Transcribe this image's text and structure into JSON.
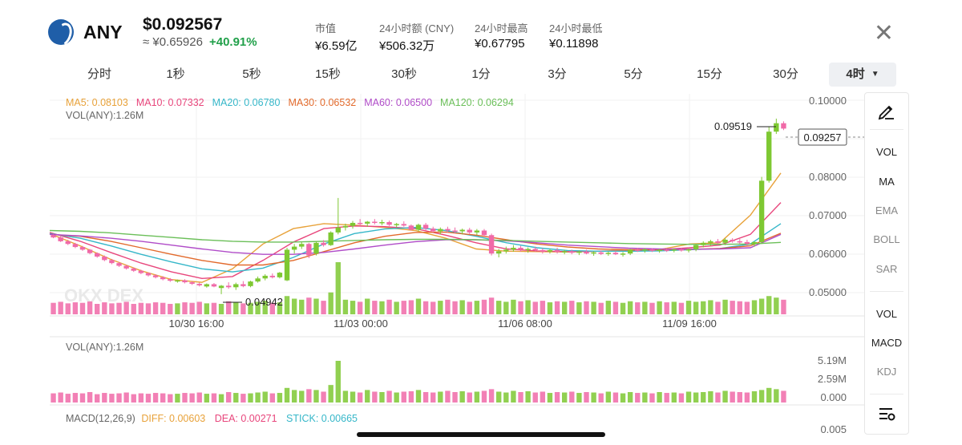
{
  "token": {
    "symbol": "ANY",
    "price": "$0.092567",
    "cny_price": "≈ ¥0.65926",
    "change": "+40.91%",
    "logo_icon": "anyswap-logo-icon"
  },
  "stats": [
    {
      "label": "市值",
      "value": "¥6.59亿"
    },
    {
      "label": "24小时额 (CNY)",
      "value": "¥506.32万"
    },
    {
      "label": "24小时最高",
      "value": "¥0.67795"
    },
    {
      "label": "24小时最低",
      "value": "¥0.11898"
    }
  ],
  "tabs": [
    "分时",
    "1秒",
    "5秒",
    "15秒",
    "30秒",
    "1分",
    "3分",
    "5分",
    "15分",
    "30分",
    "4时"
  ],
  "active_tab": "4时",
  "ma_legend": [
    {
      "label": "MA5: 0.08103",
      "color": "#e8a23a"
    },
    {
      "label": "MA10: 0.07332",
      "color": "#e8467c"
    },
    {
      "label": "MA20: 0.06780",
      "color": "#36b7c9"
    },
    {
      "label": "MA30: 0.06532",
      "color": "#e26a2c"
    },
    {
      "label": "MA60: 0.06500",
      "color": "#b04cc8"
    },
    {
      "label": "MA120: 0.06294",
      "color": "#6bbf59"
    }
  ],
  "vol_label_main": "VOL(ANY):1.26M",
  "vol_label_sub": "VOL(ANY):1.26M",
  "price_axis": [
    "0.10000",
    "0.08000",
    "0.07000",
    "0.06000",
    "0.05000"
  ],
  "current_price_tag": "0.09257",
  "high_marker": "0.09519",
  "low_marker": "0.04942",
  "watermark": "OKX DEX",
  "date_ticks": [
    "10/30 16:00",
    "11/03 00:00",
    "11/06 08:00",
    "11/09 16:00"
  ],
  "vol_axis": [
    "5.19M",
    "2.59M",
    "0.000"
  ],
  "macd": {
    "title": "MACD(12,26,9)",
    "diff": "DIFF: 0.00603",
    "dea": "DEA: 0.00271",
    "stick": "STICK: 0.00665",
    "axis_top": "0.005"
  },
  "side_tools": {
    "draw_icon": "pen-draw-icon",
    "main_indicators": [
      "VOL",
      "MA",
      "EMA",
      "BOLL",
      "SAR"
    ],
    "sub_indicators": [
      "VOL",
      "MACD",
      "KDJ"
    ],
    "settings_icon": "indicator-settings-icon"
  },
  "colors": {
    "up": "#7ec832",
    "down": "#f06aa8",
    "accent_green": "#21a04a"
  },
  "chart_data": {
    "type": "candlestick",
    "interval": "4时",
    "ylim": [
      0.045,
      0.1
    ],
    "candles_ohlc": [
      [
        0.0648,
        0.065,
        0.064,
        0.0642
      ],
      [
        0.0642,
        0.0645,
        0.063,
        0.0632
      ],
      [
        0.0632,
        0.0636,
        0.0622,
        0.0625
      ],
      [
        0.0625,
        0.0628,
        0.0614,
        0.0617
      ],
      [
        0.0617,
        0.062,
        0.0607,
        0.061
      ],
      [
        0.061,
        0.0612,
        0.0598,
        0.0601
      ],
      [
        0.0601,
        0.0603,
        0.0589,
        0.0592
      ],
      [
        0.0592,
        0.0595,
        0.058,
        0.0583
      ],
      [
        0.0583,
        0.0586,
        0.0572,
        0.0575
      ],
      [
        0.0575,
        0.0578,
        0.0565,
        0.0568
      ],
      [
        0.0568,
        0.057,
        0.0558,
        0.0561
      ],
      [
        0.0561,
        0.0564,
        0.0552,
        0.0555
      ],
      [
        0.0555,
        0.0558,
        0.0546,
        0.0549
      ],
      [
        0.0549,
        0.0551,
        0.054,
        0.0543
      ],
      [
        0.0543,
        0.0546,
        0.0535,
        0.0538
      ],
      [
        0.0538,
        0.0541,
        0.053,
        0.0533
      ],
      [
        0.0533,
        0.0536,
        0.0526,
        0.0529
      ],
      [
        0.0527,
        0.0532,
        0.0524,
        0.053
      ],
      [
        0.053,
        0.0533,
        0.0522,
        0.0525
      ],
      [
        0.0525,
        0.0528,
        0.0518,
        0.0521
      ],
      [
        0.0521,
        0.0524,
        0.0514,
        0.0517
      ],
      [
        0.0514,
        0.0522,
        0.0511,
        0.052
      ],
      [
        0.052,
        0.0523,
        0.0512,
        0.0514
      ],
      [
        0.051,
        0.0518,
        0.0494,
        0.0516
      ],
      [
        0.0516,
        0.0525,
        0.0508,
        0.0512
      ],
      [
        0.0512,
        0.0524,
        0.0505,
        0.052
      ],
      [
        0.052,
        0.0528,
        0.0512,
        0.0515
      ],
      [
        0.0515,
        0.0529,
        0.0512,
        0.0527
      ],
      [
        0.0527,
        0.054,
        0.0524,
        0.0535
      ],
      [
        0.0535,
        0.0546,
        0.053,
        0.0542
      ],
      [
        0.0542,
        0.0548,
        0.0535,
        0.0538
      ],
      [
        0.0538,
        0.0552,
        0.0535,
        0.055
      ],
      [
        0.053,
        0.0615,
        0.0528,
        0.061
      ],
      [
        0.061,
        0.0625,
        0.06,
        0.0618
      ],
      [
        0.0618,
        0.063,
        0.0612,
        0.0625
      ],
      [
        0.0625,
        0.0628,
        0.0588,
        0.0595
      ],
      [
        0.06,
        0.0632,
        0.0595,
        0.0628
      ],
      [
        0.0628,
        0.0635,
        0.0618,
        0.0622
      ],
      [
        0.0622,
        0.0658,
        0.062,
        0.0655
      ],
      [
        0.0655,
        0.0745,
        0.065,
        0.0668
      ],
      [
        0.0668,
        0.0678,
        0.066,
        0.0672
      ],
      [
        0.0672,
        0.0685,
        0.0665,
        0.068
      ],
      [
        0.068,
        0.069,
        0.0672,
        0.0678
      ],
      [
        0.0678,
        0.0685,
        0.067,
        0.0683
      ],
      [
        0.0683,
        0.069,
        0.0676,
        0.068
      ],
      [
        0.068,
        0.0688,
        0.0674,
        0.0682
      ],
      [
        0.0682,
        0.0686,
        0.0672,
        0.0675
      ],
      [
        0.0675,
        0.068,
        0.0668,
        0.0677
      ],
      [
        0.0677,
        0.0684,
        0.067,
        0.0673
      ],
      [
        0.0673,
        0.0676,
        0.066,
        0.0662
      ],
      [
        0.0662,
        0.0678,
        0.0658,
        0.0675
      ],
      [
        0.0675,
        0.068,
        0.066,
        0.0665
      ],
      [
        0.0665,
        0.067,
        0.0655,
        0.0658
      ],
      [
        0.0658,
        0.0668,
        0.065,
        0.0664
      ],
      [
        0.0664,
        0.067,
        0.0655,
        0.066
      ],
      [
        0.066,
        0.0668,
        0.0652,
        0.0658
      ],
      [
        0.0658,
        0.0665,
        0.065,
        0.0662
      ],
      [
        0.0662,
        0.0667,
        0.065,
        0.0655
      ],
      [
        0.0655,
        0.0664,
        0.0648,
        0.066
      ],
      [
        0.066,
        0.0664,
        0.0645,
        0.0648
      ],
      [
        0.0648,
        0.0652,
        0.0595,
        0.06
      ],
      [
        0.06,
        0.0612,
        0.059,
        0.0606
      ],
      [
        0.0606,
        0.0618,
        0.06,
        0.061
      ],
      [
        0.061,
        0.0622,
        0.0605,
        0.0615
      ],
      [
        0.0615,
        0.062,
        0.0605,
        0.061
      ],
      [
        0.061,
        0.0616,
        0.0602,
        0.0612
      ],
      [
        0.0612,
        0.0618,
        0.0605,
        0.0609
      ],
      [
        0.0609,
        0.0614,
        0.06,
        0.0605
      ],
      [
        0.0605,
        0.0612,
        0.06,
        0.0609
      ],
      [
        0.0609,
        0.0615,
        0.06,
        0.0604
      ],
      [
        0.0604,
        0.061,
        0.0598,
        0.0606
      ],
      [
        0.0606,
        0.061,
        0.0598,
        0.0602
      ],
      [
        0.0602,
        0.0608,
        0.0596,
        0.0605
      ],
      [
        0.0605,
        0.061,
        0.0598,
        0.06
      ],
      [
        0.06,
        0.0606,
        0.0594,
        0.0603
      ],
      [
        0.0603,
        0.0608,
        0.0596,
        0.0599
      ],
      [
        0.0599,
        0.0605,
        0.0594,
        0.0602
      ],
      [
        0.0602,
        0.0606,
        0.0596,
        0.0598
      ],
      [
        0.0598,
        0.0604,
        0.0592,
        0.06
      ],
      [
        0.06,
        0.0612,
        0.0596,
        0.061
      ],
      [
        0.061,
        0.0615,
        0.0604,
        0.0608
      ],
      [
        0.0608,
        0.0614,
        0.0602,
        0.0611
      ],
      [
        0.0611,
        0.0614,
        0.0604,
        0.0607
      ],
      [
        0.0607,
        0.0612,
        0.0602,
        0.061
      ],
      [
        0.061,
        0.0614,
        0.0604,
        0.0608
      ],
      [
        0.0608,
        0.0613,
        0.0603,
        0.0611
      ],
      [
        0.0611,
        0.0615,
        0.0605,
        0.0609
      ],
      [
        0.0609,
        0.0613,
        0.0603,
        0.0611
      ],
      [
        0.0611,
        0.0625,
        0.0606,
        0.0622
      ],
      [
        0.0622,
        0.0632,
        0.0616,
        0.0628
      ],
      [
        0.0628,
        0.0636,
        0.062,
        0.0632
      ],
      [
        0.0632,
        0.0638,
        0.0625,
        0.0628
      ],
      [
        0.0628,
        0.064,
        0.0622,
        0.0636
      ],
      [
        0.0636,
        0.064,
        0.0628,
        0.0632
      ],
      [
        0.0632,
        0.0638,
        0.0625,
        0.063
      ],
      [
        0.063,
        0.0636,
        0.062,
        0.0625
      ],
      [
        0.0625,
        0.0632,
        0.0618,
        0.063
      ],
      [
        0.063,
        0.08,
        0.0625,
        0.079
      ],
      [
        0.079,
        0.093,
        0.0785,
        0.0918
      ],
      [
        0.0918,
        0.0952,
        0.0912,
        0.094
      ],
      [
        0.094,
        0.0945,
        0.0922,
        0.0926
      ]
    ],
    "volume": [
      0.22,
      0.24,
      0.21,
      0.23,
      0.22,
      0.25,
      0.2,
      0.23,
      0.21,
      0.22,
      0.24,
      0.2,
      0.22,
      0.21,
      0.23,
      0.22,
      0.2,
      0.21,
      0.23,
      0.22,
      0.24,
      0.21,
      0.22,
      0.2,
      0.25,
      0.23,
      0.21,
      0.22,
      0.24,
      0.26,
      0.22,
      0.23,
      0.35,
      0.3,
      0.28,
      0.32,
      0.3,
      0.26,
      0.42,
      1.0,
      0.28,
      0.26,
      0.24,
      0.3,
      0.26,
      0.25,
      0.28,
      0.24,
      0.26,
      0.27,
      0.3,
      0.25,
      0.24,
      0.26,
      0.28,
      0.25,
      0.27,
      0.24,
      0.26,
      0.28,
      0.32,
      0.26,
      0.24,
      0.28,
      0.25,
      0.27,
      0.24,
      0.26,
      0.23,
      0.25,
      0.24,
      0.26,
      0.23,
      0.25,
      0.24,
      0.22,
      0.26,
      0.24,
      0.22,
      0.25,
      0.23,
      0.24,
      0.22,
      0.25,
      0.23,
      0.24,
      0.22,
      0.26,
      0.24,
      0.25,
      0.27,
      0.24,
      0.28,
      0.26,
      0.25,
      0.24,
      0.27,
      0.3,
      0.35,
      0.32,
      0.28
    ],
    "ma_series": [
      {
        "name": "MA5",
        "color": "#e8a23a",
        "points": [
          0.0652,
          0.062,
          0.0585,
          0.0555,
          0.0532,
          0.0525,
          0.056,
          0.0625,
          0.0665,
          0.0678,
          0.0674,
          0.0668,
          0.066,
          0.064,
          0.0612,
          0.0606,
          0.0605,
          0.0604,
          0.0606,
          0.0609,
          0.061,
          0.0625,
          0.0628,
          0.07,
          0.081
        ]
      },
      {
        "name": "MA10",
        "color": "#e8467c",
        "points": [
          0.0655,
          0.0632,
          0.0603,
          0.0575,
          0.0552,
          0.0535,
          0.054,
          0.0582,
          0.063,
          0.0665,
          0.0672,
          0.067,
          0.0665,
          0.0648,
          0.0628,
          0.0612,
          0.0607,
          0.0605,
          0.0606,
          0.0607,
          0.061,
          0.0615,
          0.0622,
          0.065,
          0.0733
        ]
      },
      {
        "name": "MA20",
        "color": "#36b7c9",
        "points": [
          0.0652,
          0.064,
          0.062,
          0.0598,
          0.0578,
          0.056,
          0.0552,
          0.0562,
          0.059,
          0.0625,
          0.0652,
          0.0664,
          0.0668,
          0.066,
          0.0645,
          0.0628,
          0.0615,
          0.0608,
          0.0606,
          0.0606,
          0.0607,
          0.061,
          0.0613,
          0.0625,
          0.0678
        ]
      },
      {
        "name": "MA30",
        "color": "#e26a2c",
        "points": [
          0.065,
          0.0645,
          0.0632,
          0.0615,
          0.0598,
          0.0582,
          0.057,
          0.057,
          0.0582,
          0.0605,
          0.0628,
          0.0645,
          0.0655,
          0.0656,
          0.0648,
          0.0636,
          0.0625,
          0.0617,
          0.0612,
          0.061,
          0.061,
          0.0611,
          0.0613,
          0.062,
          0.0653
        ]
      },
      {
        "name": "MA60",
        "color": "#b04cc8",
        "points": [
          0.065,
          0.0646,
          0.064,
          0.0632,
          0.0622,
          0.0612,
          0.0603,
          0.0598,
          0.0598,
          0.0603,
          0.0612,
          0.0622,
          0.0631,
          0.0636,
          0.0636,
          0.0633,
          0.0628,
          0.0622,
          0.0618,
          0.0614,
          0.0612,
          0.0611,
          0.0612,
          0.0615,
          0.065
        ]
      },
      {
        "name": "MA120",
        "color": "#6bbf59",
        "points": [
          0.066,
          0.0658,
          0.0654,
          0.0648,
          0.0642,
          0.0636,
          0.0632,
          0.063,
          0.063,
          0.0632,
          0.0634,
          0.0636,
          0.0637,
          0.0637,
          0.0636,
          0.0634,
          0.0632,
          0.063,
          0.0628,
          0.0626,
          0.0625,
          0.0624,
          0.0624,
          0.0625,
          0.0629
        ]
      }
    ]
  }
}
